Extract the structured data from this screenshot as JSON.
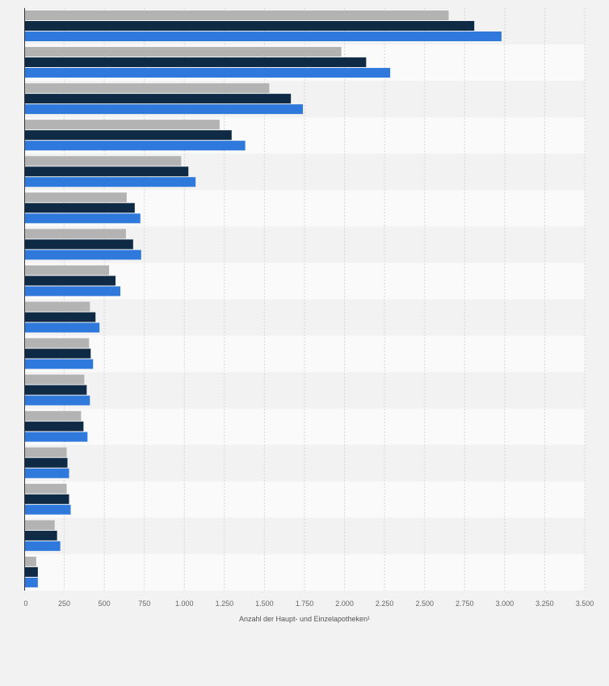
{
  "chart_data": {
    "type": "bar",
    "orientation": "horizontal",
    "title": "",
    "xlabel": "Anzahl der Haupt- und Einzelapotheken¹",
    "ylabel": "",
    "xlim": [
      0,
      3500
    ],
    "x_ticks": [
      0,
      250,
      500,
      750,
      1000,
      1250,
      1500,
      1750,
      2000,
      2250,
      2500,
      2750,
      3000,
      3250,
      3500
    ],
    "x_tick_labels": [
      "0",
      "250",
      "500",
      "750",
      "1.000",
      "1.250",
      "1.500",
      "1.750",
      "2.000",
      "2.250",
      "2.500",
      "2.750",
      "3.000",
      "3.250",
      "3.500"
    ],
    "grid": true,
    "categories": [
      "",
      "",
      "",
      "",
      "",
      "",
      "",
      "",
      "",
      "",
      "",
      "",
      "",
      "",
      "",
      ""
    ],
    "series": [
      {
        "name": "",
        "color": "#b3b3b3",
        "values": [
          2650,
          1980,
          1530,
          1220,
          980,
          640,
          635,
          530,
          410,
          405,
          375,
          355,
          265,
          265,
          190,
          75
        ]
      },
      {
        "name": "",
        "color": "#0f2a44",
        "values": [
          2810,
          2135,
          1665,
          1295,
          1025,
          690,
          680,
          570,
          445,
          415,
          390,
          370,
          270,
          280,
          205,
          85
        ]
      },
      {
        "name": "",
        "color": "#2f79dc",
        "values": [
          2980,
          2285,
          1740,
          1380,
          1070,
          725,
          730,
          600,
          470,
          430,
          410,
          395,
          280,
          290,
          225,
          85
        ]
      }
    ]
  }
}
